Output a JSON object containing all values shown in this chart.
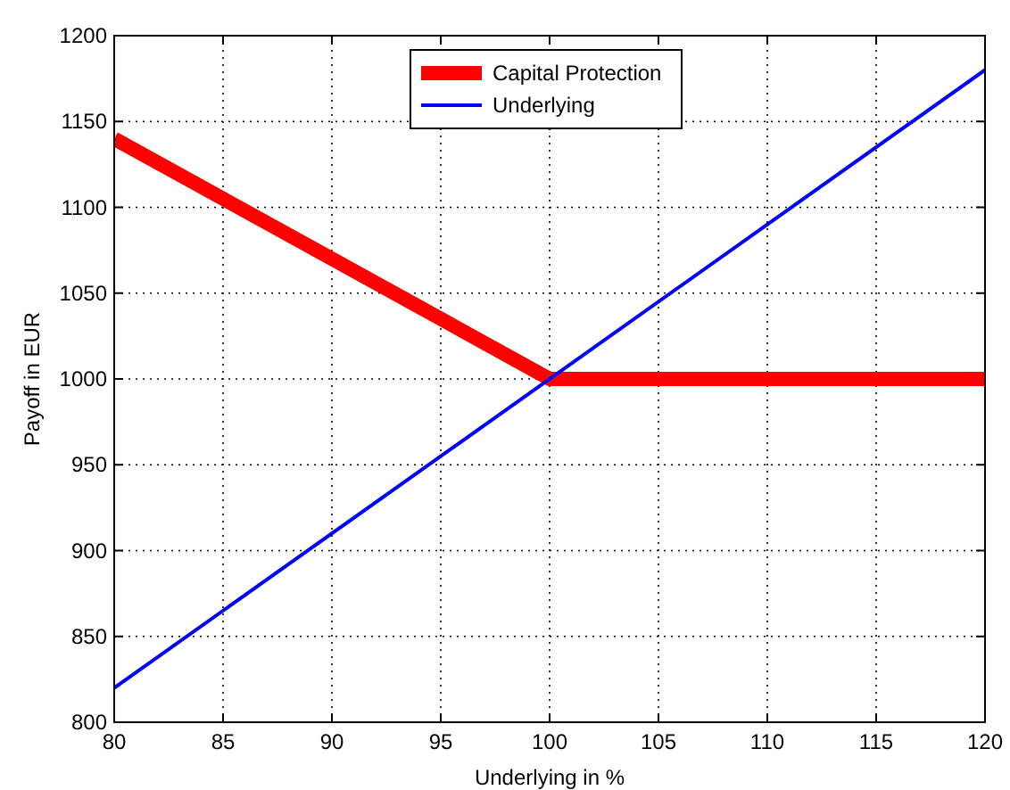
{
  "chart_data": {
    "type": "line",
    "xlabel": "Underlying in %",
    "ylabel": "Payoff in EUR",
    "xlim": [
      80,
      120
    ],
    "ylim": [
      800,
      1200
    ],
    "xticks": [
      80,
      85,
      90,
      95,
      100,
      105,
      110,
      115,
      120
    ],
    "yticks": [
      800,
      850,
      900,
      950,
      1000,
      1050,
      1100,
      1150,
      1200
    ],
    "grid": true,
    "legend": "top",
    "line_style": "solid",
    "marker": "none",
    "series": [
      {
        "name": "Capital Protection",
        "color": "#ff0000",
        "x": [
          80,
          100,
          120
        ],
        "values": [
          1140,
          1000,
          1000
        ]
      },
      {
        "name": "Underlying",
        "color": "#0000ff",
        "x": [
          80,
          120
        ],
        "values": [
          820,
          1180
        ]
      }
    ]
  }
}
